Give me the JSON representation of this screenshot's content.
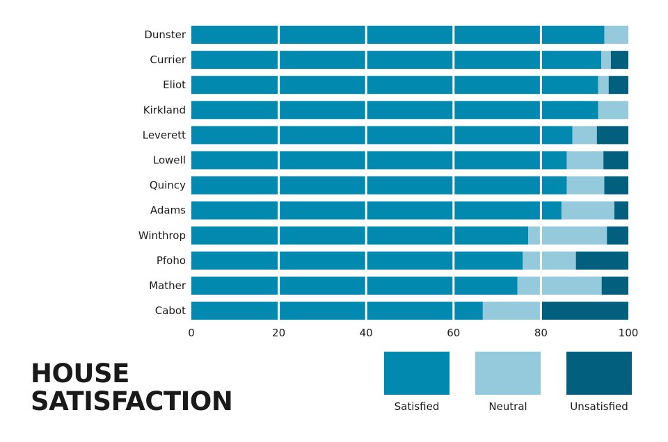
{
  "chart_data": {
    "type": "bar",
    "orientation": "horizontal",
    "stacked": true,
    "title": "HOUSE SATISFACTION",
    "categories": [
      "Dunster",
      "Currier",
      "Eliot",
      "Kirkland",
      "Leverett",
      "Lowell",
      "Quincy",
      "Adams",
      "Winthrop",
      "Pfoho",
      "Mather",
      "Cabot"
    ],
    "series": [
      {
        "name": "Satisfied",
        "color": "#0289b0",
        "values": [
          94.5,
          93.8,
          93.1,
          93.1,
          87.2,
          85.9,
          85.9,
          84.7,
          77.1,
          75.8,
          74.6,
          66.7
        ]
      },
      {
        "name": "Neutral",
        "color": "#94cadb",
        "values": [
          5.5,
          2.2,
          2.4,
          6.9,
          5.6,
          8.4,
          8.6,
          12.1,
          18.0,
          12.2,
          19.3,
          13.3
        ]
      },
      {
        "name": "Unsatisfied",
        "color": "#035f7e",
        "values": [
          0,
          4.0,
          4.5,
          0,
          7.2,
          5.7,
          5.5,
          3.2,
          4.9,
          12.0,
          6.1,
          20.0
        ]
      }
    ],
    "xlim": [
      0,
      100
    ],
    "xticks": [
      "0",
      "20",
      "40",
      "60",
      "80",
      "100"
    ],
    "gridlines": [
      20,
      40,
      60,
      80
    ],
    "grid": true,
    "legend_position": "bottom-right"
  },
  "title_lines": [
    "HOUSE",
    "SATISFACTION"
  ]
}
